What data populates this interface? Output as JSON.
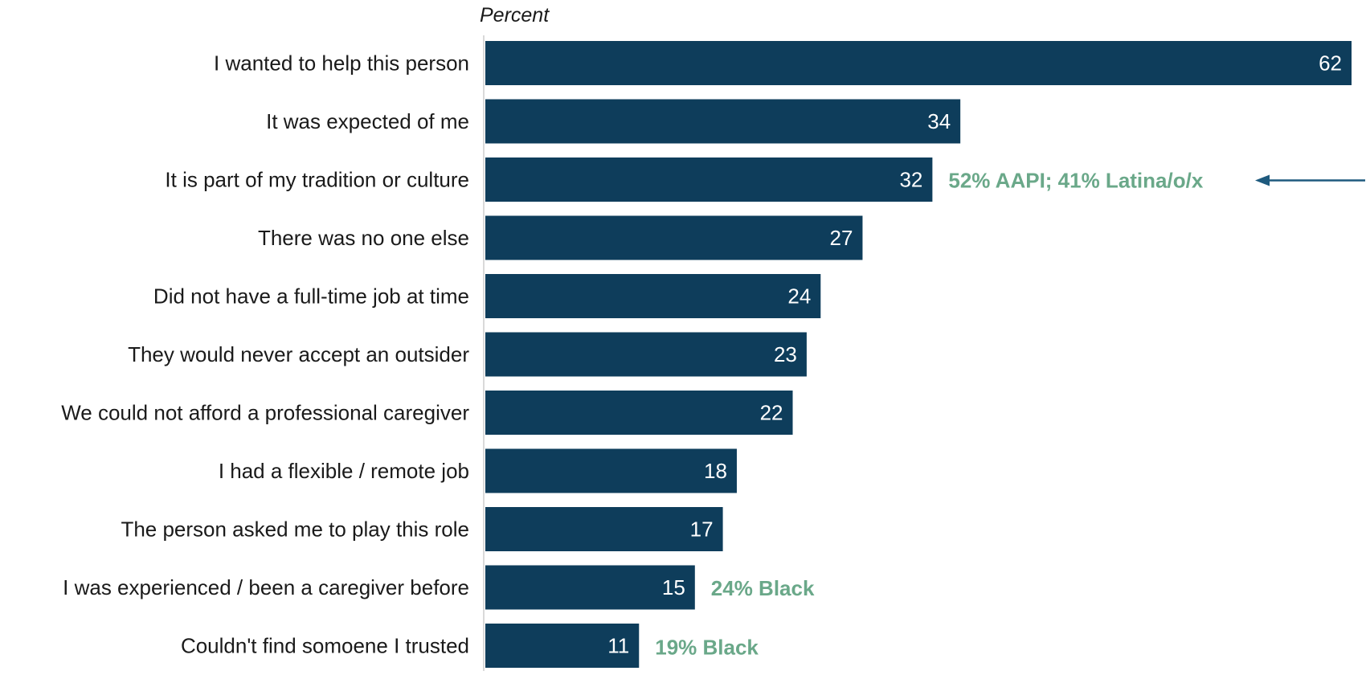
{
  "chart_data": {
    "type": "bar",
    "orientation": "horizontal",
    "unit_label": "Percent",
    "categories": [
      "I wanted to help this person",
      "It was expected of me",
      "It is part of my tradition or culture",
      "There was no one else",
      "Did not have a full-time job at time",
      "They would never accept an outsider",
      "We could not afford a professional caregiver",
      "I had a flexible / remote job",
      "The person asked me to play this role",
      "I was experienced / been a caregiver before",
      "Couldn't find somoene I trusted"
    ],
    "values": [
      62,
      34,
      32,
      27,
      24,
      23,
      22,
      18,
      17,
      15,
      11
    ],
    "annotations": [
      {
        "category_index": 2,
        "text": "52% AAPI; 41% Latina/o/x",
        "arrow": true
      },
      {
        "category_index": 9,
        "text": "24% Black",
        "arrow": false
      },
      {
        "category_index": 10,
        "text": "19% Black",
        "arrow": false
      }
    ],
    "xlim": [
      0,
      62
    ],
    "grid": false,
    "legend": "none"
  },
  "colors": {
    "bar": "#0e3d5b",
    "value_text": "#ffffff",
    "annotation_text": "#6aa889",
    "arrow": "#1e5a7e",
    "axis_line": "#d9d9d9",
    "label_text": "#1a1a1a"
  }
}
